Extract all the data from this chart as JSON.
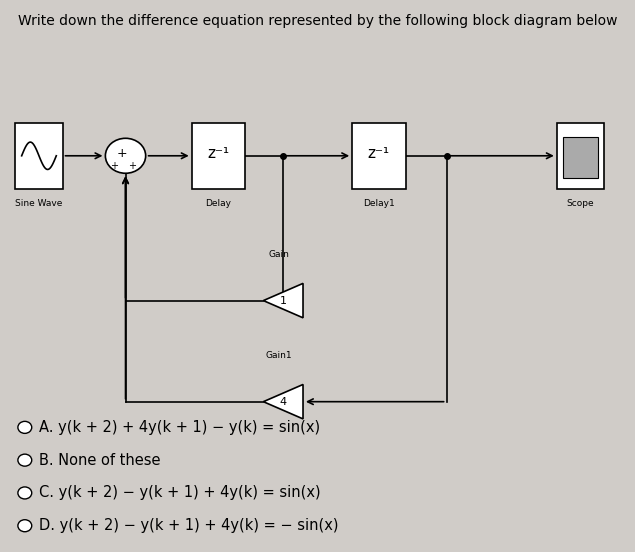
{
  "title": "Write down the difference equation represented by the following block diagram below",
  "title_fontsize": 11,
  "bg_color": "#d0ccc8",
  "panel_bg": "#e0dbd6",
  "options": [
    "A. y(k + 2) + 4y(k + 1) − y(k) = sin(x)",
    "B. None of these",
    "C. y(k + 2) − y(k + 1) + 4y(k) = sin(x)",
    "D. y(k + 2) − y(k + 1) + 4y(k) = − sin(x)"
  ],
  "option_fontsize": 10.5
}
